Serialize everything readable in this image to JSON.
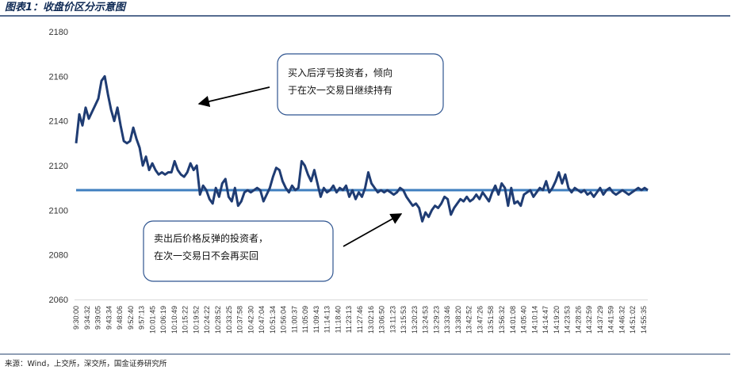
{
  "figure": {
    "title": "图表1：收盘价区分示意图",
    "source": "来源：Wind，上交所，深交所，国金证券研究所"
  },
  "colors": {
    "title": "#0f2a55",
    "rule": "#1f3c6b",
    "series": "#1f3c73",
    "reference": "#3f7fbf",
    "callout_border": "#2f5590"
  },
  "chart_data": {
    "type": "line",
    "title": "",
    "xlabel": "",
    "ylabel": "",
    "ylim": [
      2060,
      2180
    ],
    "yticks": [
      "2180",
      "2160",
      "2140",
      "2120",
      "2100",
      "2080",
      "2060"
    ],
    "xticks": [
      "9:30:00",
      "9:34:32",
      "9:39:05",
      "9:43:34",
      "9:48:06",
      "9:52:40",
      "9:57:13",
      "10:01:45",
      "10:06:19",
      "10:10:49",
      "10:15:22",
      "10:19:52",
      "10:24:22",
      "10:28:52",
      "10:33:25",
      "10:37:58",
      "10:42:30",
      "10:47:04",
      "10:51:34",
      "10:56:04",
      "11:00:37",
      "11:05:09",
      "11:09:43",
      "11:14:13",
      "11:18:40",
      "11:23:13",
      "11:27:46",
      "13:02:16",
      "13:06:50",
      "13:11:23",
      "13:15:53",
      "13:20:23",
      "13:24:53",
      "13:29:23",
      "13:33:46",
      "13:38:20",
      "13:42:52",
      "13:47:26",
      "13:51:58",
      "13:56:32",
      "14:01:08",
      "14:05:40",
      "14:10:14",
      "14:14:47",
      "14:19:20",
      "14:23:53",
      "14:28:26",
      "14:32:59",
      "14:37:29",
      "14:41:59",
      "14:46:32",
      "14:51:02",
      "14:55:35"
    ],
    "grid": false,
    "reference_line": 2109,
    "series": [
      {
        "values": [
          2130,
          2143,
          2138,
          2146,
          2141,
          2144,
          2147,
          2150,
          2158,
          2160,
          2152,
          2145,
          2140,
          2146,
          2138,
          2131,
          2130,
          2131,
          2137,
          2132,
          2128,
          2120,
          2124,
          2118,
          2121,
          2118,
          2116,
          2117,
          2116,
          2117,
          2117,
          2122,
          2118,
          2116,
          2115,
          2117,
          2121,
          2118,
          2120,
          2107,
          2111,
          2109,
          2105,
          2103,
          2110,
          2106,
          2112,
          2114,
          2106,
          2104,
          2110,
          2102,
          2104,
          2108,
          2109,
          2108,
          2109,
          2110,
          2109,
          2104,
          2107,
          2110,
          2115,
          2119,
          2118,
          2113,
          2110,
          2108,
          2111,
          2109,
          2110,
          2122,
          2120,
          2116,
          2113,
          2118,
          2112,
          2106,
          2110,
          2108,
          2109,
          2111,
          2108,
          2110,
          2109,
          2111,
          2106,
          2109,
          2105,
          2108,
          2106,
          2110,
          2117,
          2112,
          2110,
          2108,
          2109,
          2108,
          2109,
          2108,
          2107,
          2108,
          2110,
          2109,
          2106,
          2104,
          2102,
          2103,
          2101,
          2095,
          2099,
          2097,
          2100,
          2102,
          2101,
          2103,
          2106,
          2105,
          2098,
          2101,
          2103,
          2105,
          2104,
          2106,
          2104,
          2105,
          2107,
          2105,
          2108,
          2106,
          2104,
          2108,
          2111,
          2107,
          2112,
          2110,
          2102,
          2110,
          2103,
          2104,
          2102,
          2107,
          2108,
          2109,
          2106,
          2108,
          2110,
          2109,
          2113,
          2108,
          2110,
          2113,
          2117,
          2112,
          2116,
          2110,
          2108,
          2110,
          2109,
          2108,
          2109,
          2107,
          2108,
          2106,
          2108,
          2110,
          2107,
          2109,
          2110,
          2108,
          2107,
          2108,
          2109,
          2108,
          2107,
          2108,
          2109,
          2110,
          2109,
          2110,
          2109
        ]
      }
    ],
    "annotations": [
      {
        "lines": [
          "买入后浮亏投资者，倾向",
          "于在次一交易日继续持有"
        ]
      },
      {
        "lines": [
          "卖出后价格反弹的投资者，",
          "在次一交易日不会再买回"
        ]
      }
    ]
  }
}
